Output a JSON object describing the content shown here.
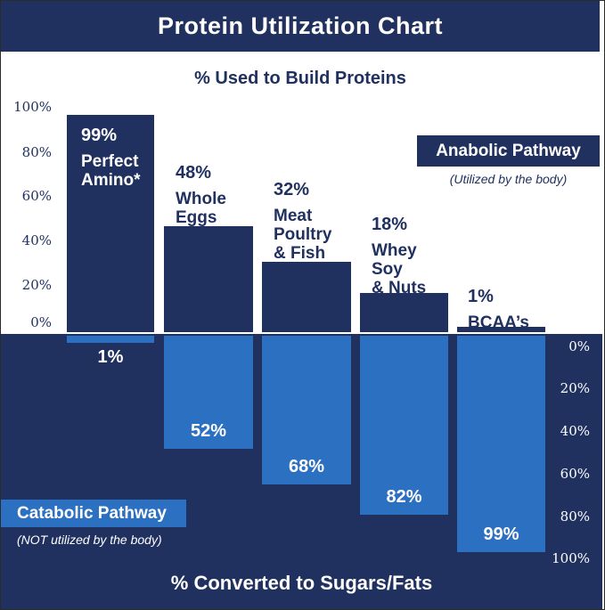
{
  "header": {
    "title": "Protein Utilization Chart"
  },
  "top_section": {
    "subtitle": "% Used to Build Proteins",
    "axis_ticks": [
      "100%",
      "80%",
      "60%",
      "40%",
      "20%",
      "0%"
    ],
    "legend": {
      "label": "Anabolic Pathway",
      "note": "(Utilized by the body)"
    }
  },
  "bottom_section": {
    "title": "% Converted to Sugars/Fats",
    "axis_ticks": [
      "0%",
      "20%",
      "40%",
      "60%",
      "80%",
      "100%"
    ],
    "legend": {
      "label": "Catabolic Pathway",
      "note": "(NOT utilized by the body)"
    }
  },
  "columns": [
    {
      "name": "Perfect Amino*",
      "name_display": "Perfect\nAmino*",
      "anabolic_pct": "99%",
      "anabolic_value": 99,
      "catabolic_pct": "1%",
      "catabolic_value": 1
    },
    {
      "name": "Whole Eggs",
      "name_display": "Whole\nEggs",
      "anabolic_pct": "48%",
      "anabolic_value": 48,
      "catabolic_pct": "52%",
      "catabolic_value": 52
    },
    {
      "name": "Meat Poultry & Fish",
      "name_display": "Meat\nPoultry\n& Fish",
      "anabolic_pct": "32%",
      "anabolic_value": 32,
      "catabolic_pct": "68%",
      "catabolic_value": 68
    },
    {
      "name": "Whey Soy & Nuts",
      "name_display": "Whey\nSoy\n& Nuts",
      "anabolic_pct": "18%",
      "anabolic_value": 18,
      "catabolic_pct": "82%",
      "catabolic_value": 82
    },
    {
      "name": "BCAA’s",
      "name_display": "BCAA’s",
      "anabolic_pct": "1%",
      "anabolic_value": 1,
      "catabolic_pct": "99%",
      "catabolic_value": 99
    }
  ],
  "colors": {
    "navy": "#20315F",
    "light_blue": "#2C70C2",
    "white": "#FFFFFF"
  },
  "chart_data": {
    "type": "bar",
    "orientation": "diverging-vertical",
    "title": "Protein Utilization Chart",
    "categories": [
      "Perfect Amino*",
      "Whole Eggs",
      "Meat Poultry & Fish",
      "Whey Soy & Nuts",
      "BCAA’s"
    ],
    "series": [
      {
        "name": "Anabolic Pathway — % Used to Build Proteins",
        "values": [
          99,
          48,
          32,
          18,
          1
        ]
      },
      {
        "name": "Catabolic Pathway — % Converted to Sugars/Fats",
        "values": [
          1,
          52,
          68,
          82,
          99
        ]
      }
    ],
    "units": "%",
    "ylim_top": [
      0,
      100
    ],
    "ylim_bottom": [
      0,
      100
    ],
    "grid": false,
    "legend_position": "inline-boxes"
  }
}
